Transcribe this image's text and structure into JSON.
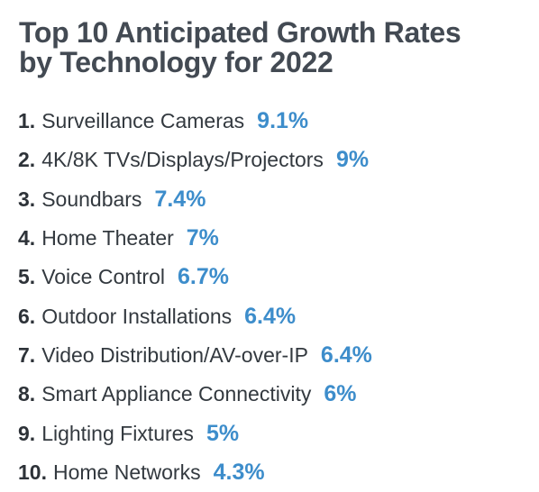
{
  "title": {
    "line1": "Top 10 Anticipated Growth Rates",
    "line2": "by Technology for 2022"
  },
  "colors": {
    "title": "#434a53",
    "text": "#33393f",
    "accent": "#3d8dcb"
  },
  "items": [
    {
      "rank": "1.",
      "label": "Surveillance Cameras",
      "value": "9.1%"
    },
    {
      "rank": "2.",
      "label": "4K/8K TVs/Displays/Projectors",
      "value": "9%"
    },
    {
      "rank": "3.",
      "label": "Soundbars",
      "value": "7.4%"
    },
    {
      "rank": "4.",
      "label": "Home Theater",
      "value": "7%"
    },
    {
      "rank": "5.",
      "label": "Voice Control",
      "value": "6.7%"
    },
    {
      "rank": "6.",
      "label": "Outdoor Installations",
      "value": "6.4%"
    },
    {
      "rank": "7.",
      "label": "Video Distribution/AV-over-IP",
      "value": "6.4%"
    },
    {
      "rank": "8.",
      "label": "Smart Appliance Connectivity",
      "value": "6%"
    },
    {
      "rank": "9.",
      "label": "Lighting Fixtures",
      "value": "5%"
    },
    {
      "rank": "10.",
      "label": "Home Networks",
      "value": "4.3%"
    }
  ]
}
